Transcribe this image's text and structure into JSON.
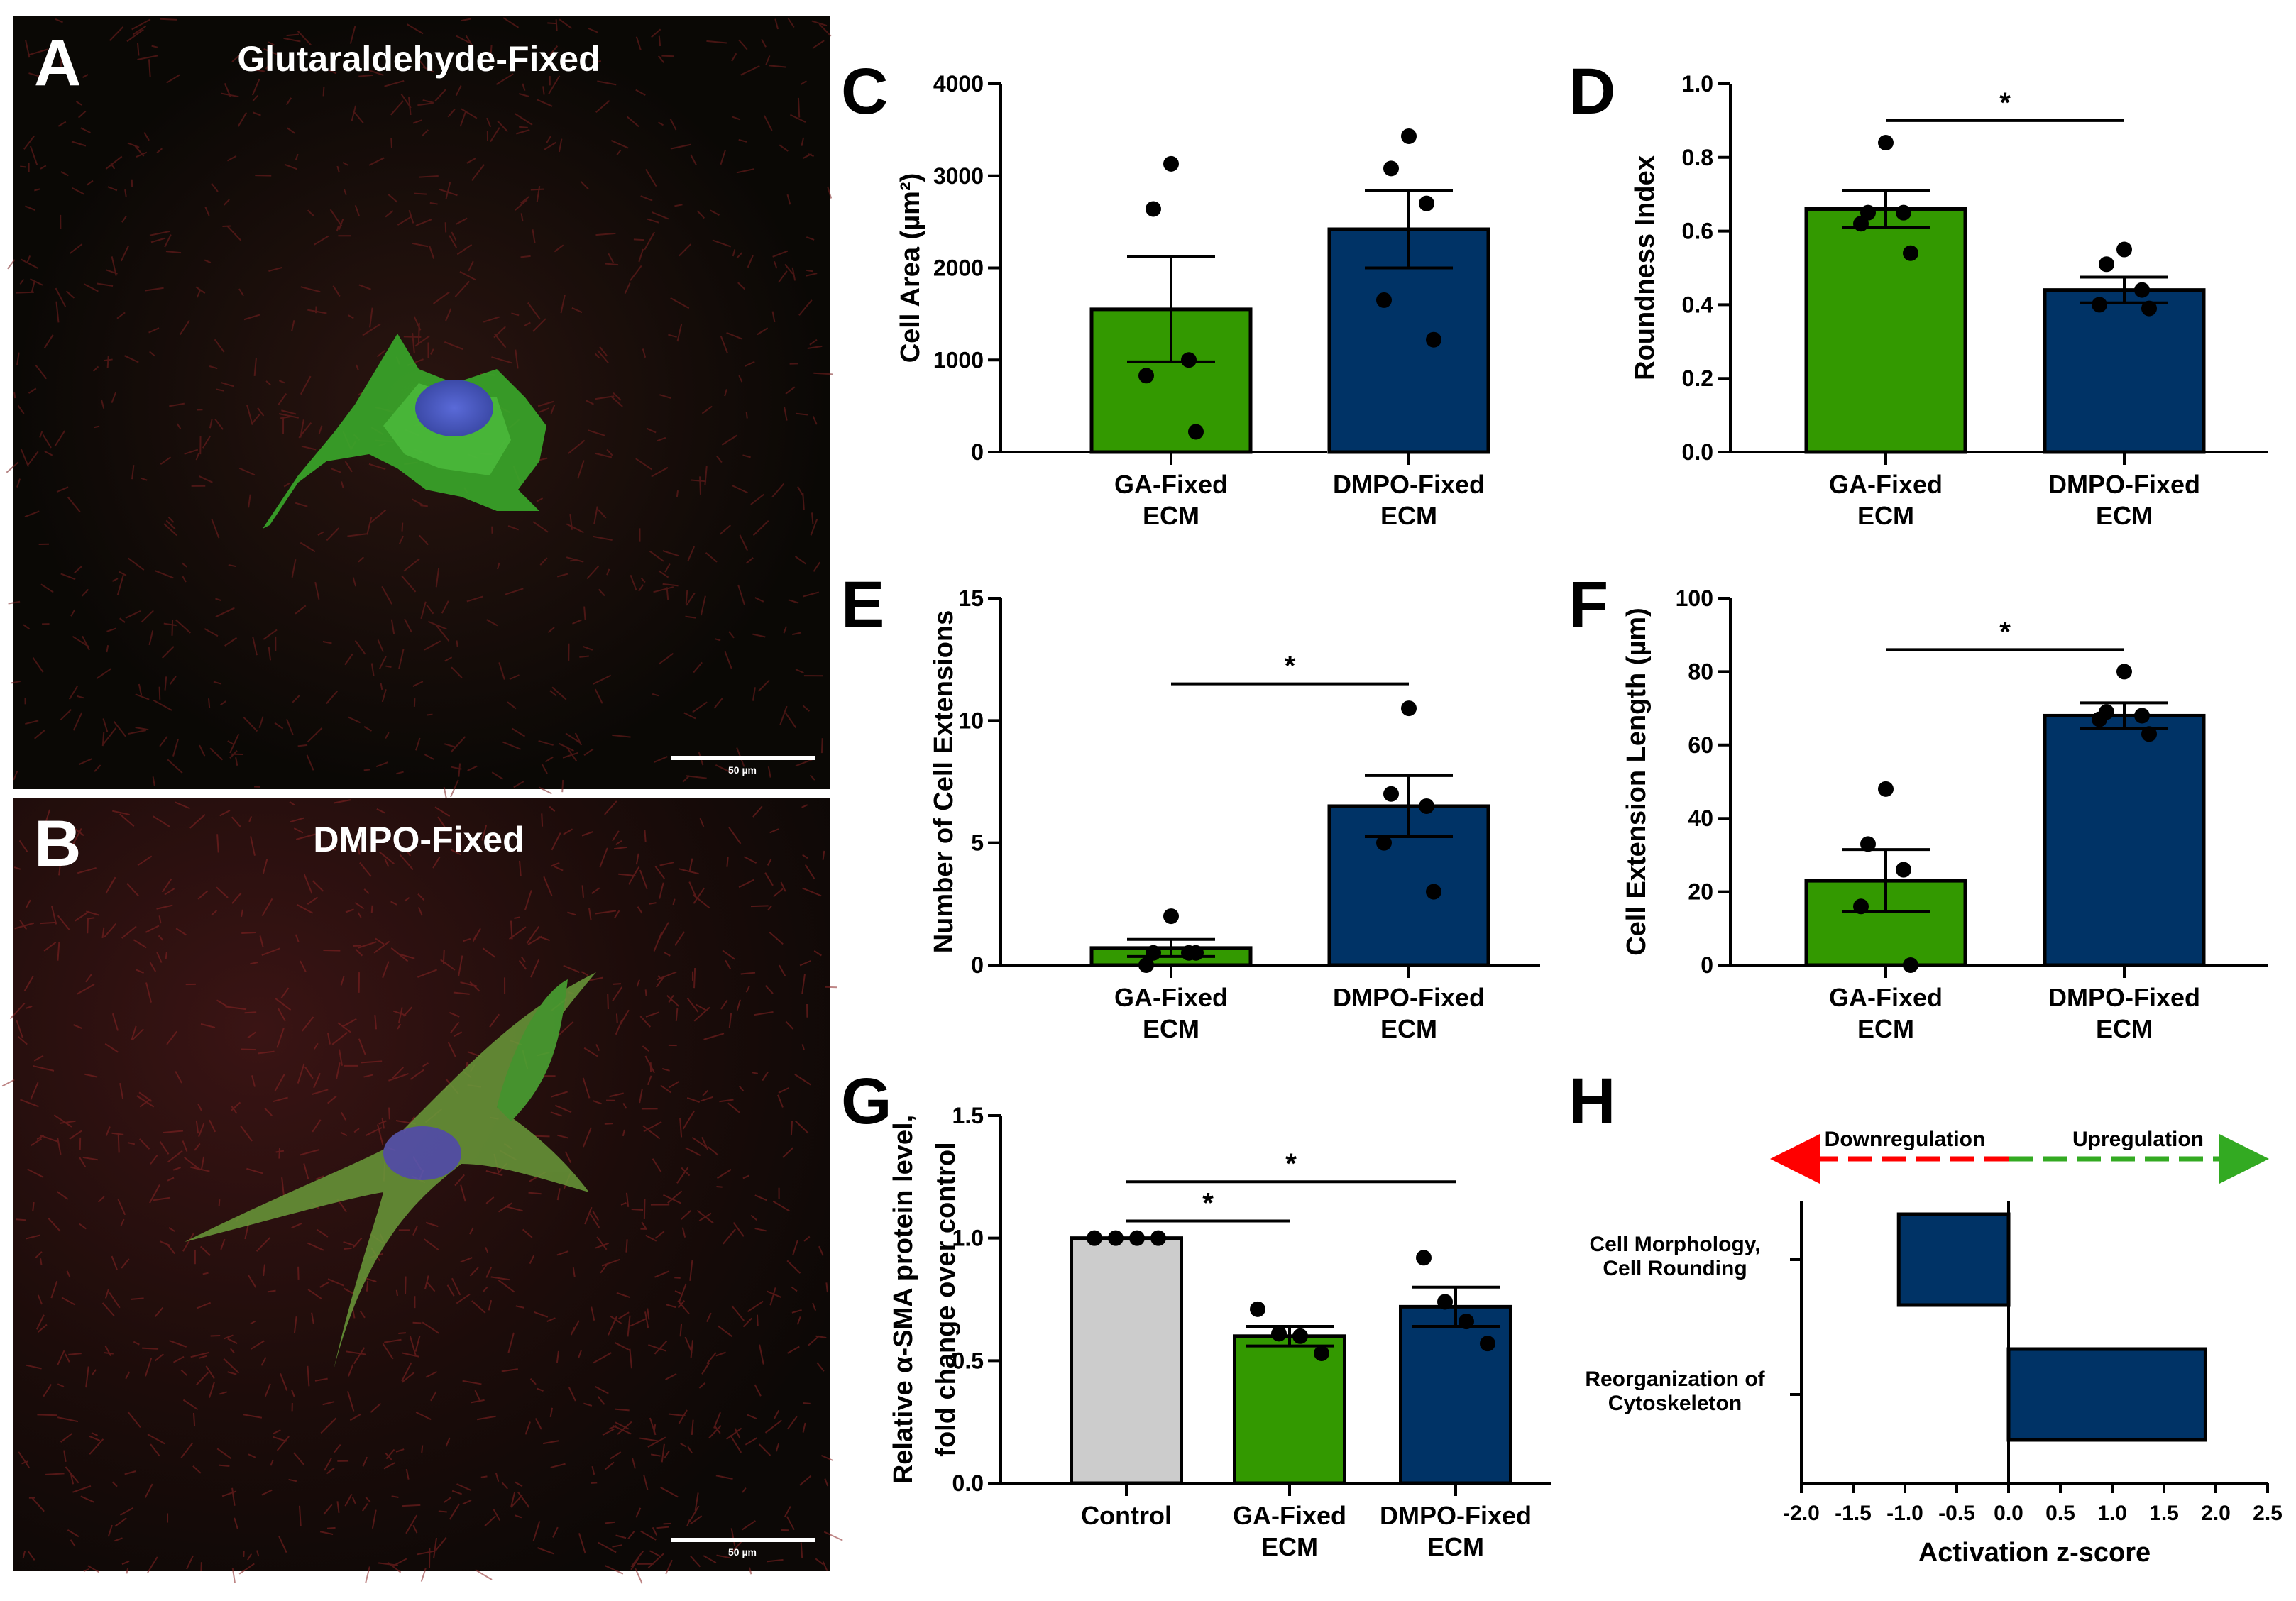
{
  "colors": {
    "ga": "#339900",
    "dmpo": "#003366",
    "control": "#cccccc",
    "down_arrow": "#ff0000",
    "up_arrow": "#33aa22",
    "micrograph_bg": "#0a0805"
  },
  "panels": {
    "A": {
      "letter": "A",
      "title": "Glutaraldehyde-Fixed",
      "scale_bar": "50 µm"
    },
    "B": {
      "letter": "B",
      "title": "DMPO-Fixed",
      "scale_bar": "50 µm"
    }
  },
  "chart_data": [
    {
      "panel": "C",
      "type": "bar",
      "ylabel": "Cell Area (µm²)",
      "ylim": [
        0,
        4000
      ],
      "yticks": [
        "0",
        "1000",
        "2000",
        "3000",
        "4000"
      ],
      "categories": [
        "GA-Fixed ECM",
        "DMPO-Fixed ECM"
      ],
      "cat_lines": [
        [
          "GA-Fixed",
          "ECM"
        ],
        [
          "DMPO-Fixed",
          "ECM"
        ]
      ],
      "values": [
        1550,
        2420
      ],
      "sem": [
        570,
        420
      ],
      "points": [
        [
          3130,
          2640,
          1000,
          830,
          220
        ],
        [
          3430,
          3080,
          2700,
          1650,
          1220
        ]
      ],
      "significance": []
    },
    {
      "panel": "D",
      "type": "bar",
      "ylabel": "Roundness Index",
      "ylim": [
        0,
        1.0
      ],
      "yticks": [
        "0.0",
        "0.2",
        "0.4",
        "0.6",
        "0.8",
        "1.0"
      ],
      "categories": [
        "GA-Fixed ECM",
        "DMPO-Fixed ECM"
      ],
      "cat_lines": [
        [
          "GA-Fixed",
          "ECM"
        ],
        [
          "DMPO-Fixed",
          "ECM"
        ]
      ],
      "values": [
        0.66,
        0.44
      ],
      "sem": [
        0.05,
        0.035
      ],
      "points": [
        [
          0.84,
          0.65,
          0.65,
          0.62,
          0.54
        ],
        [
          0.55,
          0.51,
          0.44,
          0.4,
          0.39
        ]
      ],
      "significance": [
        {
          "from": 0,
          "to": 1,
          "level": 0.9,
          "label": "*"
        }
      ]
    },
    {
      "panel": "E",
      "type": "bar",
      "ylabel": "Number of Cell Extensions",
      "ylim": [
        0,
        15
      ],
      "yticks": [
        "0",
        "5",
        "10",
        "15"
      ],
      "categories": [
        "GA-Fixed ECM",
        "DMPO-Fixed ECM"
      ],
      "cat_lines": [
        [
          "GA-Fixed",
          "ECM"
        ],
        [
          "DMPO-Fixed",
          "ECM"
        ]
      ],
      "values": [
        0.7,
        6.5
      ],
      "sem": [
        0.35,
        1.25
      ],
      "points": [
        [
          2.0,
          0.5,
          0.5,
          0.0,
          0.5
        ],
        [
          10.5,
          7.0,
          6.5,
          5.0,
          3.0
        ]
      ],
      "significance": [
        {
          "from": 0,
          "to": 1,
          "level": 11.5,
          "label": "*"
        }
      ]
    },
    {
      "panel": "F",
      "type": "bar",
      "ylabel": "Cell Extension Length (µm)",
      "ylim": [
        0,
        100
      ],
      "yticks": [
        "0",
        "20",
        "40",
        "60",
        "80",
        "100"
      ],
      "categories": [
        "GA-Fixed ECM",
        "DMPO-Fixed ECM"
      ],
      "cat_lines": [
        [
          "GA-Fixed",
          "ECM"
        ],
        [
          "DMPO-Fixed",
          "ECM"
        ]
      ],
      "values": [
        23,
        68
      ],
      "sem": [
        8.5,
        3.5
      ],
      "points": [
        [
          48,
          33,
          26,
          16,
          0
        ],
        [
          80,
          69,
          68,
          67,
          63
        ]
      ],
      "significance": [
        {
          "from": 0,
          "to": 1,
          "level": 86,
          "label": "*"
        }
      ]
    },
    {
      "panel": "G",
      "type": "bar",
      "ylabel": "Relative α-SMA protein level,",
      "ylabel2": "fold change over control",
      "ylim": [
        0,
        1.5
      ],
      "yticks": [
        "0.0",
        "0.5",
        "1.0",
        "1.5"
      ],
      "categories": [
        "Control",
        "GA-Fixed ECM",
        "DMPO-Fixed ECM"
      ],
      "cat_lines": [
        [
          "Control"
        ],
        [
          "GA-Fixed",
          "ECM"
        ],
        [
          "DMPO-Fixed",
          "ECM"
        ]
      ],
      "values": [
        1.0,
        0.6,
        0.72
      ],
      "sem": [
        0.0,
        0.04,
        0.08
      ],
      "points": [
        [
          1.0,
          1.0,
          1.0,
          1.0
        ],
        [
          0.71,
          0.61,
          0.6,
          0.53
        ],
        [
          0.92,
          0.74,
          0.66,
          0.57
        ]
      ],
      "significance": [
        {
          "from": 0,
          "to": 1,
          "level": 1.07,
          "label": "*"
        },
        {
          "from": 0,
          "to": 2,
          "level": 1.23,
          "label": "*"
        }
      ]
    },
    {
      "panel": "H",
      "type": "bar",
      "orientation": "horizontal",
      "xlabel": "Activation z-score",
      "xlim": [
        -2.0,
        2.5
      ],
      "xticks": [
        "-2.0",
        "-1.5",
        "-1.0",
        "-0.5",
        "0.0",
        "0.5",
        "1.0",
        "1.5",
        "2.0",
        "2.5"
      ],
      "categories": [
        "Cell Morphology, Cell Rounding",
        "Reorganization of Cytoskeleton"
      ],
      "cat_lines": [
        [
          "Cell Morphology,",
          "Cell Rounding"
        ],
        [
          "Reorganization of",
          "Cytoskeleton"
        ]
      ],
      "values": [
        -1.06,
        1.9
      ],
      "legend": {
        "down": "Downregulation",
        "up": "Upregulation"
      }
    }
  ]
}
